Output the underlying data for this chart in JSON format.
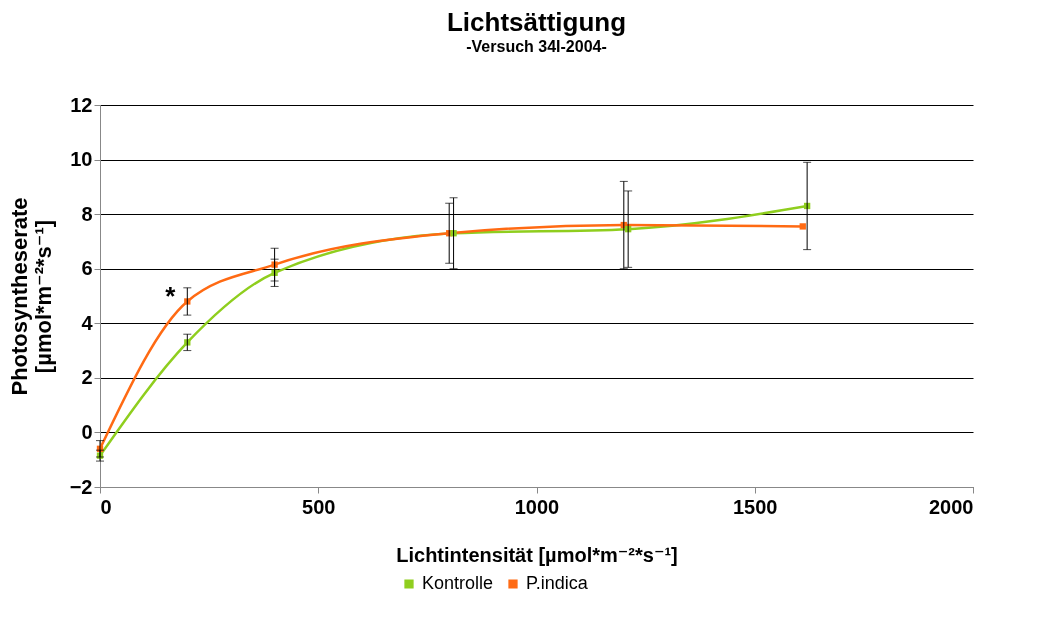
{
  "chart_data": {
    "type": "line",
    "title": "Lichtsättigung",
    "subtitle": "-Versuch 34I-2004-",
    "xlabel": "Lichtintensität [µmol*m⁻²*s⁻¹]",
    "ylabel": "Photosyntheserate\n[µmol*m⁻²*s⁻¹]",
    "xlim": [
      0,
      2000
    ],
    "xticks": [
      0,
      500,
      1000,
      1500,
      2000
    ],
    "ylim": [
      -2,
      12
    ],
    "yticks": [
      -2,
      0,
      2,
      4,
      6,
      8,
      10,
      12
    ],
    "grid": "y",
    "legend": "bottom",
    "marker": "square",
    "line_style": "solid",
    "series": [
      {
        "name": "Kontrolle",
        "color": "#8fce1e",
        "x": [
          0,
          200,
          400,
          810,
          1210,
          1620
        ],
        "values": [
          -0.85,
          3.3,
          5.85,
          7.3,
          7.45,
          8.3
        ],
        "errors": [
          0.2,
          0.3,
          0.5,
          1.3,
          1.4,
          1.6
        ]
      },
      {
        "name": "P.indica",
        "color": "#ff6a13",
        "x": [
          0,
          200,
          400,
          800,
          1200,
          1610
        ],
        "values": [
          -0.6,
          4.8,
          6.15,
          7.3,
          7.6,
          7.55
        ],
        "errors": [
          0.3,
          0.5,
          0.6,
          1.1,
          1.6,
          null
        ]
      }
    ],
    "annotations": [
      {
        "text": "*",
        "x": 200,
        "y": 4.8
      }
    ]
  }
}
